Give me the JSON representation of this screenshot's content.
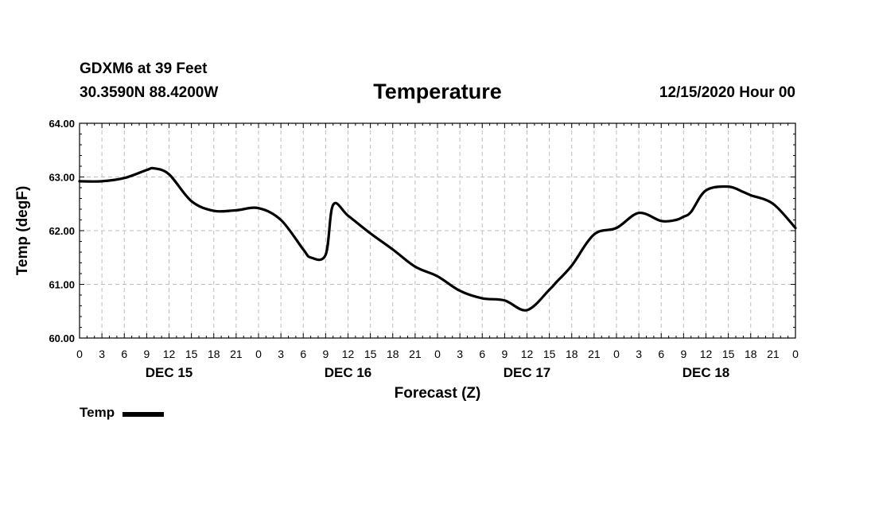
{
  "header": {
    "station": "GDXM6 at 39 Feet",
    "coords": "30.3590N 88.4200W",
    "runtime": "12/15/2020 Hour 00"
  },
  "legend": {
    "label": "Temp"
  },
  "chart_data": {
    "type": "line",
    "title": "Temperature",
    "xlabel": "Forecast (Z)",
    "ylabel": "Temp (degF)",
    "ylim": [
      60.0,
      64.0
    ],
    "xlim": [
      0,
      96
    ],
    "yticks": [
      "60.00",
      "61.00",
      "62.00",
      "63.00",
      "64.00"
    ],
    "xticks": [
      "0",
      "3",
      "6",
      "9",
      "12",
      "15",
      "18",
      "21",
      "0",
      "3",
      "6",
      "9",
      "12",
      "15",
      "18",
      "21",
      "0",
      "3",
      "6",
      "9",
      "12",
      "15",
      "18",
      "21",
      "0",
      "3",
      "6",
      "9",
      "12",
      "15",
      "18",
      "21",
      "0"
    ],
    "day_labels": [
      {
        "hour": 12,
        "label": "DEC 15"
      },
      {
        "hour": 36,
        "label": "DEC 16"
      },
      {
        "hour": 60,
        "label": "DEC 17"
      },
      {
        "hour": 84,
        "label": "DEC 18"
      }
    ],
    "grid": true,
    "legend_position": "bottom-left",
    "series": [
      {
        "name": "Temp",
        "color": "#000000",
        "x": [
          0,
          3,
          6,
          9,
          10,
          12,
          15,
          18,
          21,
          24,
          27,
          30,
          31,
          33,
          34,
          36,
          39,
          42,
          45,
          48,
          51,
          54,
          57,
          60,
          63,
          64,
          66,
          69,
          72,
          75,
          78,
          80,
          81,
          82,
          84,
          87,
          89,
          90,
          93,
          96
        ],
        "y": [
          62.92,
          62.92,
          62.98,
          63.13,
          63.16,
          63.05,
          62.55,
          62.37,
          62.38,
          62.42,
          62.2,
          61.65,
          61.5,
          61.55,
          62.48,
          62.28,
          61.95,
          61.65,
          61.33,
          61.15,
          60.88,
          60.74,
          60.7,
          60.52,
          60.9,
          61.05,
          61.35,
          61.93,
          62.05,
          62.33,
          62.18,
          62.2,
          62.26,
          62.35,
          62.75,
          62.82,
          62.72,
          62.66,
          62.5,
          62.05
        ]
      }
    ]
  }
}
